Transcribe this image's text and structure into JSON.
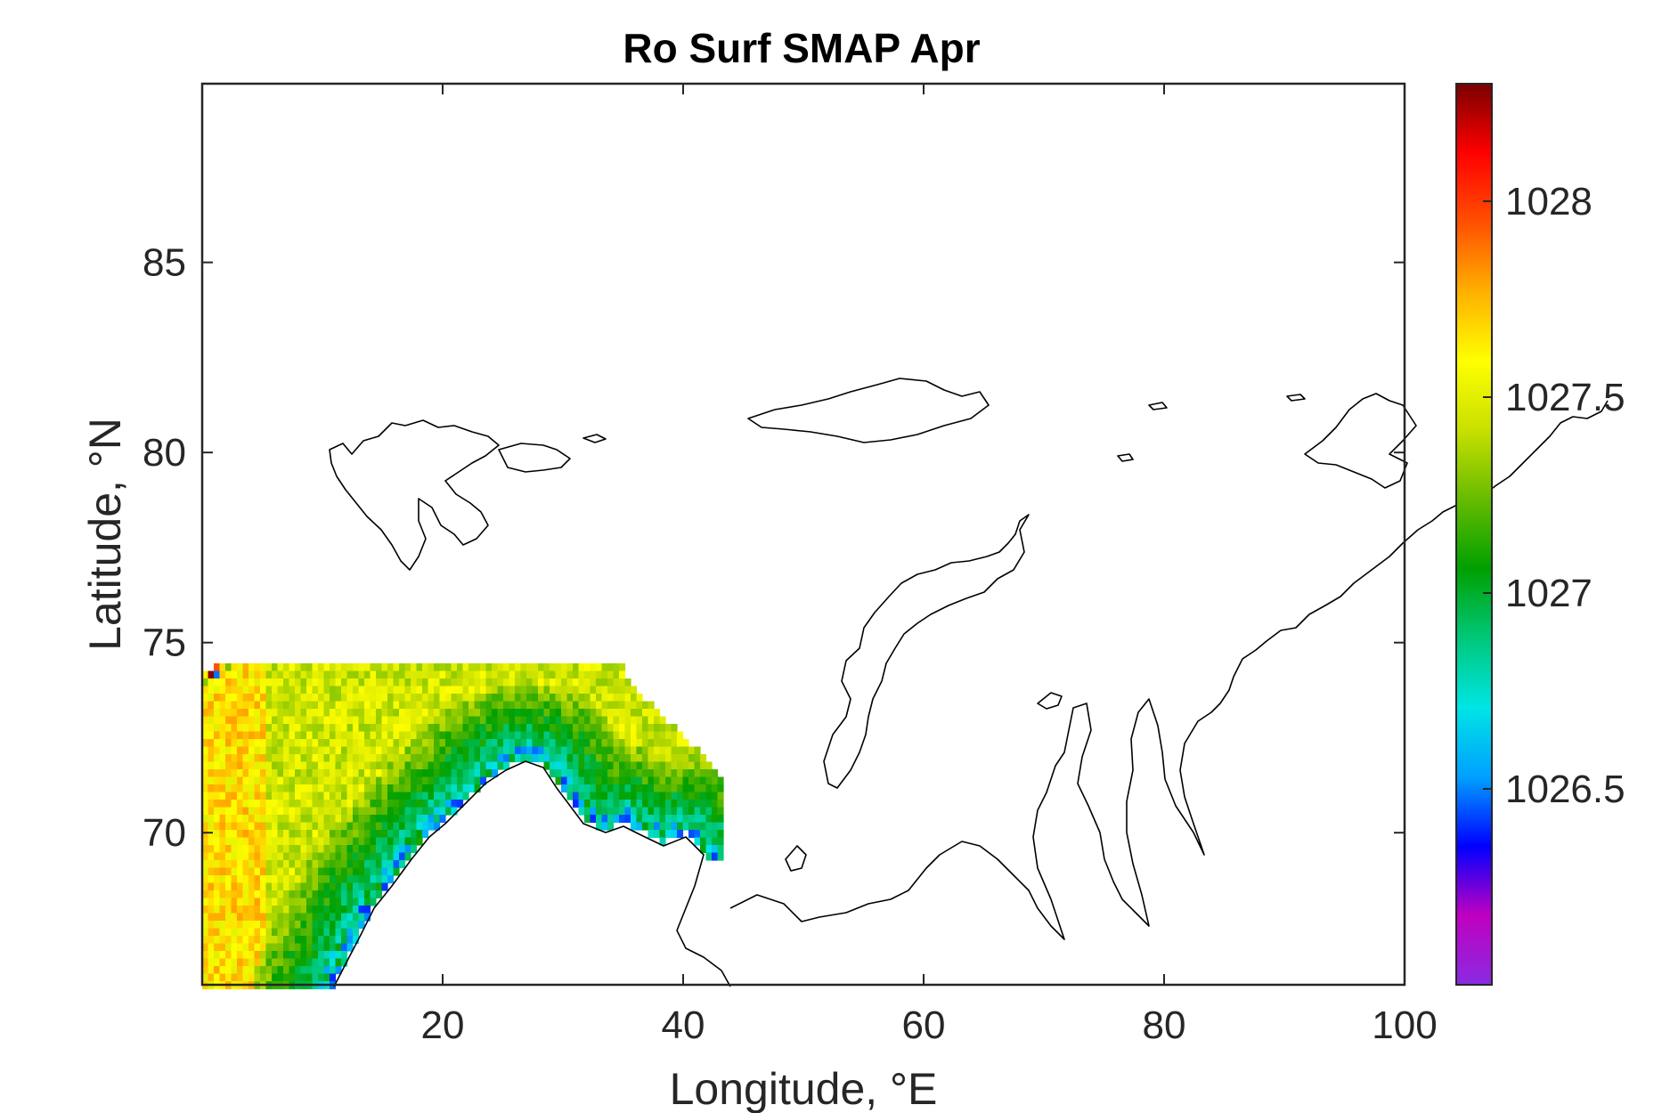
{
  "chart_data": {
    "type": "heatmap",
    "title": "Ro Surf SMAP Apr",
    "xlabel": "Longitude, °E",
    "ylabel": "Latitude, °N",
    "xlim": [
      0,
      100
    ],
    "ylim": [
      66,
      89.7
    ],
    "xticks": [
      20,
      40,
      60,
      80,
      100
    ],
    "yticks": [
      70,
      75,
      80,
      85
    ],
    "colorbar": {
      "range": [
        1026.0,
        1028.3
      ],
      "ticks": [
        1026.5,
        1027,
        1027.5,
        1028
      ],
      "colormap": "jet",
      "colors": [
        "#8a2be2",
        "#c000c0",
        "#0000ff",
        "#00a0ff",
        "#00e5e5",
        "#00c87a",
        "#00a000",
        "#66bb00",
        "#c8e000",
        "#ffff00",
        "#ffb000",
        "#ff5000",
        "#ff0000",
        "#7a0000"
      ]
    },
    "field": {
      "description_levels": {
        "open_water_interior": 1027.45,
        "coastal_band": 1026.85,
        "ice_edge": 1026.4,
        "western_margin": 1027.65
      },
      "region_lon": [
        0,
        44
      ],
      "region_lat": [
        66,
        74.2
      ]
    },
    "coastline": "Svalbard, Franz Josef Land, Novaya Zemlya, Scandinavia and Russian Arctic coast"
  }
}
